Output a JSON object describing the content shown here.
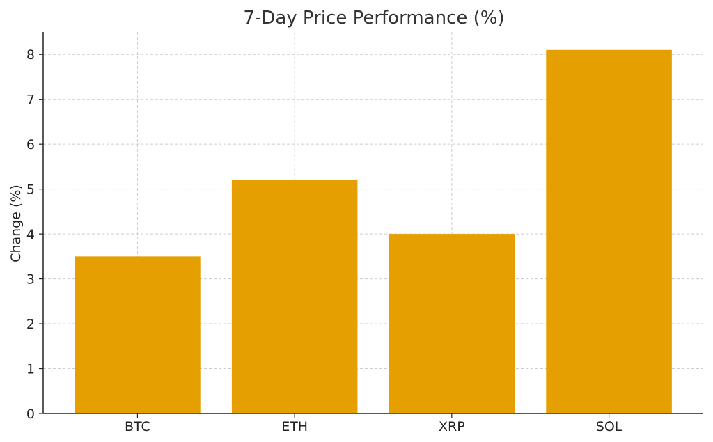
{
  "chart_data": {
    "type": "bar",
    "title": "7-Day Price Performance (%)",
    "xlabel": "",
    "ylabel": "Change (%)",
    "categories": [
      "BTC",
      "ETH",
      "XRP",
      "SOL"
    ],
    "values": [
      3.5,
      5.2,
      4.0,
      8.1
    ],
    "ylim": [
      0,
      8.5
    ],
    "yticks": [
      0,
      1,
      2,
      3,
      4,
      5,
      6,
      7,
      8
    ],
    "grid": true,
    "bar_color": "#E69F00"
  }
}
